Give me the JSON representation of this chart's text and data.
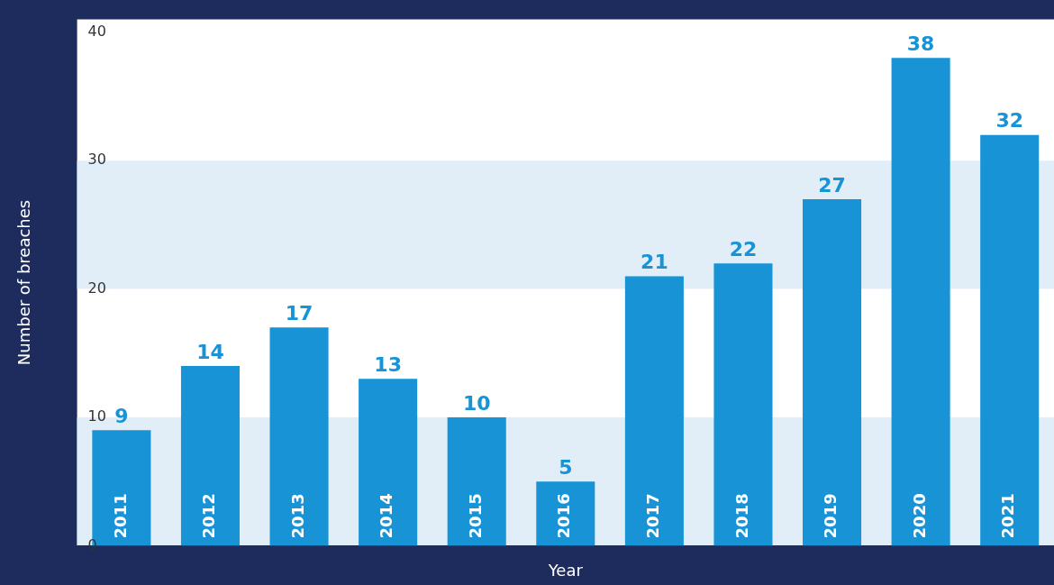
{
  "chart_data": {
    "type": "bar",
    "xlabel": "Year",
    "ylabel": "Number of breaches",
    "categories": [
      "2011",
      "2012",
      "2013",
      "2014",
      "2015",
      "2016",
      "2017",
      "2018",
      "2019",
      "2020",
      "2021"
    ],
    "values": [
      9,
      14,
      17,
      13,
      10,
      5,
      21,
      22,
      27,
      38,
      32
    ],
    "color": "#1793d6",
    "ylim": [
      0,
      41
    ],
    "yticks": [
      0,
      10,
      20,
      30,
      40
    ],
    "bands": [
      {
        "axis": "y",
        "from": 0,
        "to": 10,
        "color": "#e1eef8"
      },
      {
        "axis": "y",
        "from": 20,
        "to": 30,
        "color": "#e1eef8"
      }
    ],
    "data_labels": true,
    "grid": false,
    "legend": false
  }
}
